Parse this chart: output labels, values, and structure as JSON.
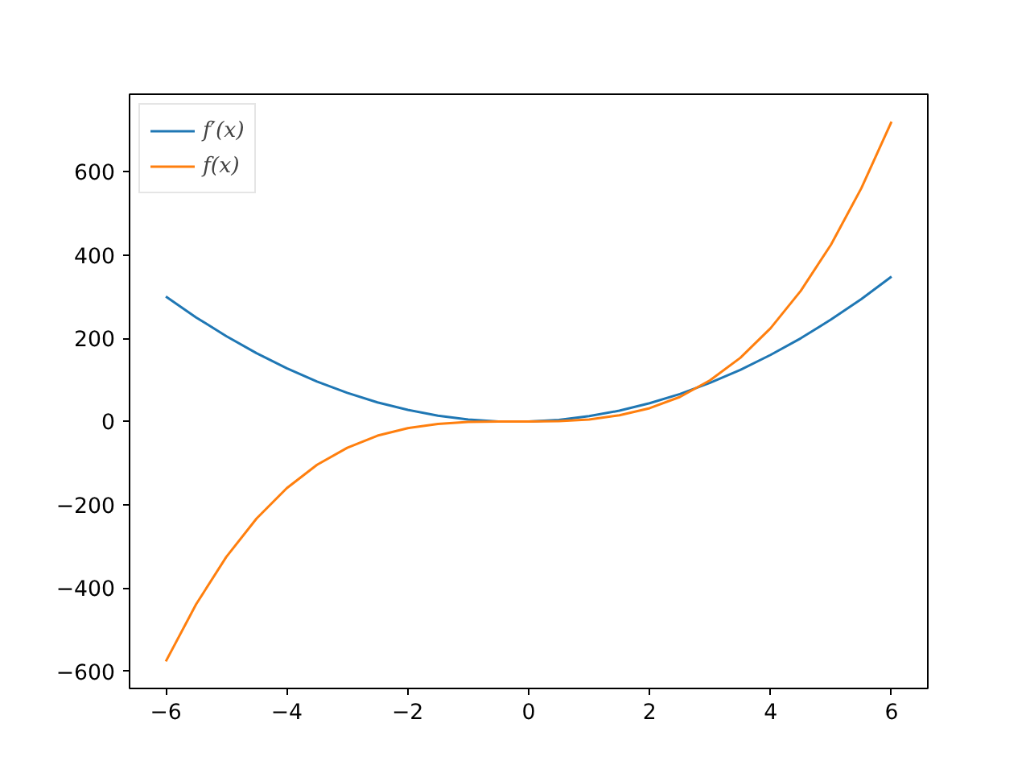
{
  "chart_data": {
    "type": "line",
    "x": [
      -6,
      -5.5,
      -5,
      -4.5,
      -4,
      -3.5,
      -3,
      -2.5,
      -2,
      -1.5,
      -1,
      -0.5,
      0,
      0.5,
      1,
      1.5,
      2,
      2.5,
      3,
      3.5,
      4,
      4.5,
      5,
      5.5,
      6
    ],
    "series": [
      {
        "name": "f′(x)",
        "color": "#1f77b4",
        "values": [
          300,
          250,
          205,
          164,
          128,
          96,
          69,
          46,
          28,
          14,
          5,
          0,
          0,
          4,
          13,
          26,
          44,
          66,
          93,
          124,
          160,
          200,
          245,
          294,
          348
        ]
      },
      {
        "name": "f(x)",
        "color": "#ff7f0e",
        "values": [
          -576,
          -439,
          -325,
          -233,
          -160,
          -104,
          -63,
          -34,
          -16,
          -6,
          -1,
          0,
          0,
          1,
          5,
          15,
          32,
          59,
          99,
          153,
          224,
          314,
          425,
          560,
          720
        ]
      }
    ],
    "xlim": [
      -6.6,
      6.6
    ],
    "ylim": [
      -641,
      786
    ],
    "xticks": [
      {
        "value": -6,
        "label": "−6"
      },
      {
        "value": -4,
        "label": "−4"
      },
      {
        "value": -2,
        "label": "−2"
      },
      0,
      2,
      4,
      6
    ],
    "yticks": [
      {
        "value": -600,
        "label": "−600"
      },
      {
        "value": -400,
        "label": "−400"
      },
      {
        "value": -200,
        "label": "−200"
      },
      0,
      200,
      400,
      600
    ],
    "legend": "top left",
    "grid": false,
    "marker": "none",
    "line_style": "solid"
  }
}
